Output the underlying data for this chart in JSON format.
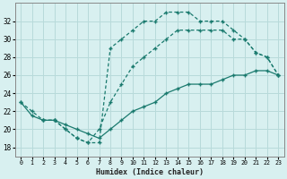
{
  "xlabel": "Humidex (Indice chaleur)",
  "bg_color": "#d8f0f0",
  "grid_color": "#b8dada",
  "line_color": "#1a7a6e",
  "xlim": [
    -0.5,
    23.5
  ],
  "ylim": [
    17,
    34
  ],
  "xticks": [
    0,
    1,
    2,
    3,
    4,
    5,
    6,
    7,
    8,
    9,
    10,
    11,
    12,
    13,
    14,
    15,
    16,
    17,
    18,
    19,
    20,
    21,
    22,
    23
  ],
  "yticks": [
    18,
    20,
    22,
    24,
    26,
    28,
    30,
    32
  ],
  "curve1_x": [
    0,
    1,
    2,
    3,
    4,
    5,
    6,
    7,
    8,
    9,
    10,
    11,
    12,
    13,
    14,
    15,
    16,
    17,
    18,
    19,
    20,
    21,
    22,
    23
  ],
  "curve1_y": [
    23,
    21.5,
    21,
    21,
    20.5,
    20,
    19.5,
    19,
    20,
    21,
    22,
    22.5,
    23,
    24,
    24.5,
    25,
    25,
    25,
    25.5,
    26,
    26,
    26.5,
    26.5,
    26
  ],
  "curve2_x": [
    0,
    1,
    2,
    3,
    4,
    5,
    6,
    7,
    8,
    9,
    10,
    11,
    12,
    13,
    14,
    15,
    16,
    17,
    18,
    19,
    20,
    21,
    22,
    23
  ],
  "curve2_y": [
    23,
    22,
    21,
    21,
    20,
    19,
    18.5,
    20,
    23,
    25,
    27,
    28,
    29,
    30,
    31,
    31,
    31,
    31,
    31,
    30,
    30,
    28.5,
    28,
    26
  ],
  "curve3_x": [
    2,
    3,
    4,
    5,
    6,
    7,
    8,
    9,
    10,
    11,
    12,
    13,
    14,
    15,
    16,
    17,
    18,
    19,
    20,
    21,
    22,
    23
  ],
  "curve3_y": [
    21,
    21,
    20,
    19,
    18.5,
    18.5,
    29,
    30,
    31,
    32,
    32,
    33,
    33,
    33,
    32,
    32,
    32,
    31,
    30,
    28.5,
    28,
    26
  ]
}
